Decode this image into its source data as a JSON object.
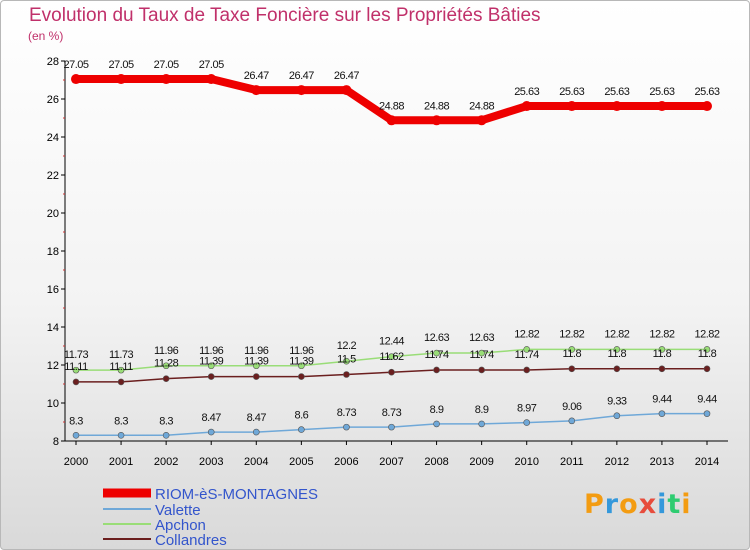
{
  "title": "Evolution du Taux de Taxe Foncière sur les Propriétés Bâties",
  "unit": "(en %)",
  "logo": {
    "text": "Proxiti",
    "colors": [
      "#f39c12",
      "#3498db",
      "#f39c12",
      "#e74c3c",
      "#3498db",
      "#2ecc71",
      "#f39c12"
    ]
  },
  "chart_data": {
    "type": "line",
    "title": "Evolution du Taux de Taxe Foncière sur les Propriétés Bâties",
    "ylabel": "(en %)",
    "xlabel": "",
    "ylim": [
      8,
      28
    ],
    "yticks": [
      "8",
      "10",
      "12",
      "14",
      "16",
      "18",
      "20",
      "22",
      "24",
      "26",
      "28"
    ],
    "grid": false,
    "legend": "bottom-left",
    "categories": [
      "2000",
      "2001",
      "2002",
      "2003",
      "2004",
      "2005",
      "2006",
      "2007",
      "2008",
      "2009",
      "2010",
      "2011",
      "2012",
      "2013",
      "2014"
    ],
    "series": [
      {
        "name": "RIOM-èS-MONTAGNES",
        "color": "#ee0000",
        "width": 8,
        "values": [
          27.05,
          27.05,
          27.05,
          27.05,
          26.47,
          26.47,
          26.47,
          24.88,
          24.88,
          24.88,
          25.63,
          25.63,
          25.63,
          25.63,
          25.63
        ],
        "labels": [
          "27.05",
          "27.05",
          "27.05",
          "27.05",
          "26.47",
          "26.47",
          "26.47",
          "24.88",
          "24.88",
          "24.88",
          "25.63",
          "25.63",
          "25.63",
          "25.63",
          "25.63"
        ]
      },
      {
        "name": "Valette",
        "color": "#6fa8d8",
        "width": 1.5,
        "values": [
          8.3,
          8.3,
          8.3,
          8.47,
          8.47,
          8.6,
          8.73,
          8.73,
          8.9,
          8.9,
          8.97,
          9.06,
          9.33,
          9.44,
          9.44
        ],
        "labels": [
          "8.3",
          "8.3",
          "8.3",
          "8.47",
          "8.47",
          "8.6",
          "8.73",
          "8.73",
          "8.9",
          "8.9",
          "8.97",
          "9.06",
          "9.33",
          "9.44",
          "9.44"
        ]
      },
      {
        "name": "Apchon",
        "color": "#99dd77",
        "width": 1.5,
        "values": [
          11.73,
          11.73,
          11.96,
          11.96,
          11.96,
          11.96,
          12.2,
          12.44,
          12.63,
          12.63,
          12.82,
          12.82,
          12.82,
          12.82,
          12.82
        ],
        "labels": [
          "11.73",
          "11.73",
          "11.96",
          "11.96",
          "11.96",
          "11.96",
          "12.2",
          "12.44",
          "12.63",
          "12.63",
          "12.82",
          "12.82",
          "12.82",
          "12.82",
          "12.82"
        ]
      },
      {
        "name": "Collandres",
        "color": "#6b1f1f",
        "width": 1.5,
        "values": [
          11.11,
          11.11,
          11.28,
          11.39,
          11.39,
          11.39,
          11.5,
          11.62,
          11.74,
          11.74,
          11.74,
          11.8,
          11.8,
          11.8,
          11.8
        ],
        "labels": [
          "11.11",
          "11.11",
          "11.28",
          "11.39",
          "11.39",
          "11.39",
          "11.5",
          "11.62",
          "11.74",
          "11.74",
          "11.74",
          "11.8",
          "11.8",
          "11.8",
          "11.8"
        ]
      }
    ]
  }
}
